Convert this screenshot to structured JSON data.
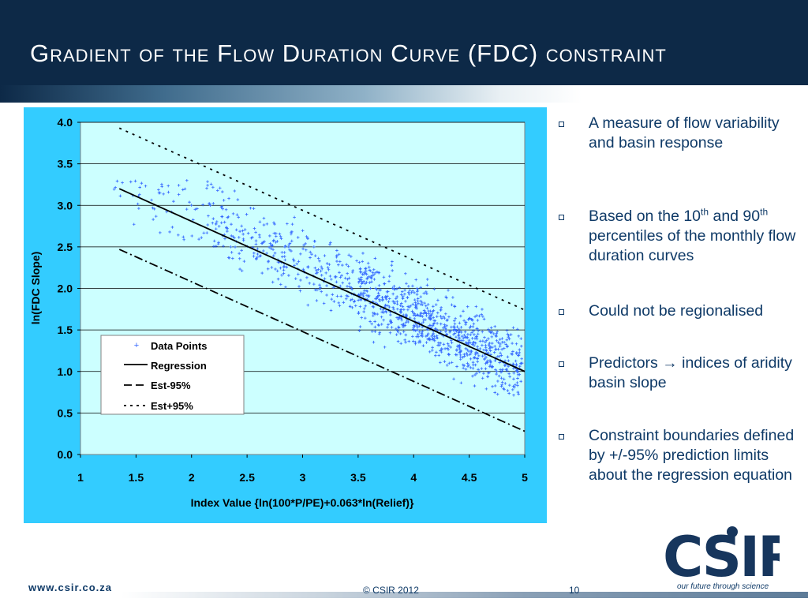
{
  "slide": {
    "title": "Gradient of the Flow Duration Curve  (FDC) constraint",
    "footer_url": "www.csir.co.za",
    "copyright": "© CSIR  2012",
    "page_number": "10",
    "logo_text": "CSIR",
    "tagline": "our future through science"
  },
  "bullets": [
    {
      "text": "A measure of flow variability and basin response"
    },
    {
      "pre": "Based on the 10",
      "sup1": "th",
      "mid": " and 90",
      "sup2": "th",
      "post": " percentiles of the monthly flow duration curves"
    },
    {
      "text": "Could not be regionalised"
    },
    {
      "text": "Predictors → indices of aridity basin slope"
    },
    {
      "text": "Constraint boundaries defined by +/-95% prediction limits about the regression equation"
    }
  ],
  "colors": {
    "header": "#0d2947",
    "panel": "#33ccff",
    "plot": "#ccffff",
    "points": "#3366ff",
    "bullet_text": "#0f3a67"
  },
  "chart_data": {
    "type": "scatter",
    "xlabel": "Index Value {ln(100*P/PE)+0.063*ln(Relief)}",
    "ylabel": "ln(FDC Slope)",
    "xlim": [
      1,
      5
    ],
    "ylim": [
      0,
      4
    ],
    "xticks": [
      "1",
      "1.5",
      "2",
      "2.5",
      "3",
      "3.5",
      "4",
      "4.5",
      "5"
    ],
    "yticks": [
      "0.0",
      "0.5",
      "1.0",
      "1.5",
      "2.0",
      "2.5",
      "3.0",
      "3.5",
      "4.0"
    ],
    "grid": "horizontal",
    "legend_position": "bottom-left",
    "series": [
      {
        "name": "Data Points",
        "style": "markers",
        "x_range": [
          1.3,
          5.0
        ],
        "approx_count": 1200,
        "trend": "y ≈ 4.27 − 0.65x with spread ±0.4"
      },
      {
        "name": "Regression",
        "style": "solid",
        "x": [
          1.35,
          5.0
        ],
        "y": [
          3.2,
          1.0
        ]
      },
      {
        "name": "Est-95%",
        "style": "dashdot",
        "x": [
          1.35,
          5.0
        ],
        "y": [
          2.47,
          0.28
        ]
      },
      {
        "name": "Est+95%",
        "style": "dotted",
        "x": [
          1.35,
          5.0
        ],
        "y": [
          3.93,
          1.74
        ]
      }
    ]
  }
}
